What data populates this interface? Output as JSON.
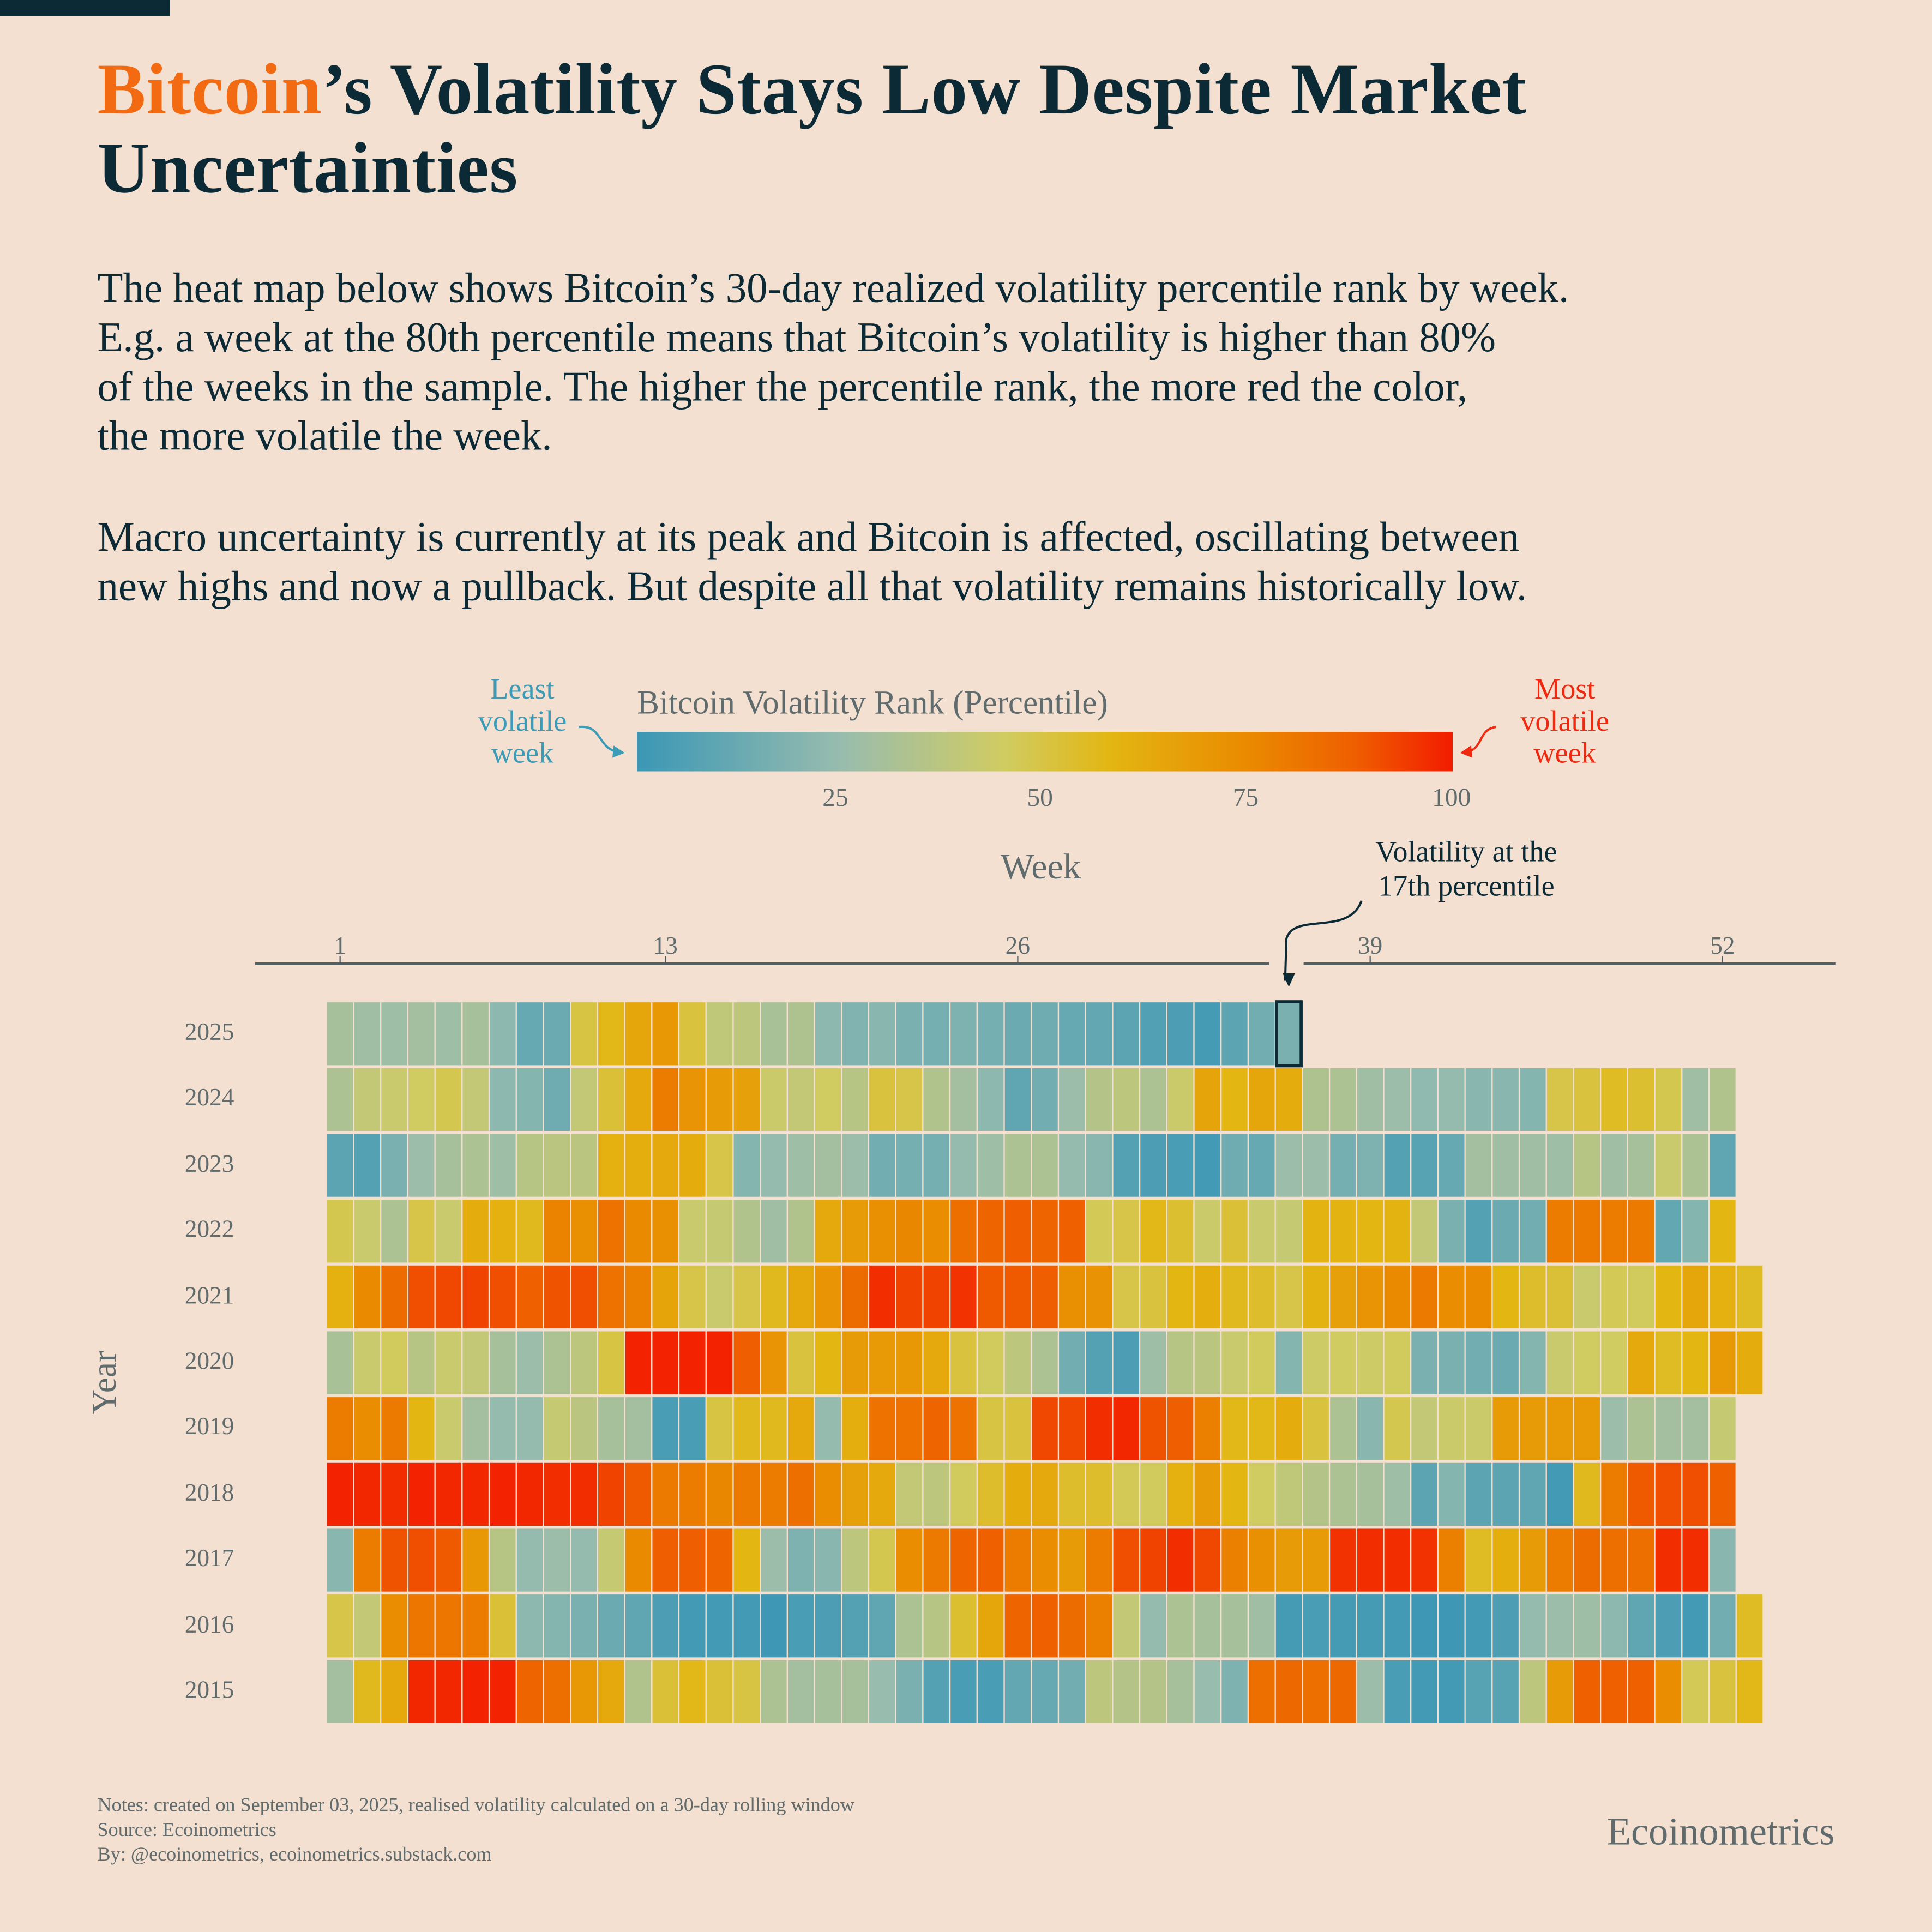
{
  "title": {
    "accent": "Bitcoin",
    "rest_line1": "’s Volatility Stays Low Despite Market",
    "line2": "Uncertainties"
  },
  "description": {
    "paragraph1": [
      "The heat map below shows Bitcoin’s 30-day realized volatility percentile rank by week.",
      "E.g. a week at the 80th percentile means that Bitcoin’s volatility is higher than 80%",
      "of the weeks in the sample. The higher the percentile rank, the more red the color,",
      "the more volatile the week."
    ],
    "paragraph2": [
      "Macro uncertainty is currently at its peak and Bitcoin is affected, oscillating between",
      "new highs and now a pullback. But despite all that volatility remains historically low."
    ]
  },
  "legend": {
    "title": "Bitcoin Volatility Rank (Percentile)",
    "left_note": [
      "Least",
      "volatile",
      "week"
    ],
    "right_note": [
      "Most",
      "volatile",
      "week"
    ],
    "ticks": [
      "25",
      "50",
      "75",
      "100"
    ],
    "colors": {
      "low": "#3c9cb8",
      "high": "#f02a10"
    }
  },
  "annotation": [
    "Volatility at the",
    "17th percentile"
  ],
  "notes": [
    "Notes: created on September 03, 2025, realised volatility calculated on a 30-day rolling window",
    "Source: Ecoinometrics",
    "By: @ecoinometrics, ecoinometrics.substack.com"
  ],
  "brand": "Ecoinometrics",
  "chart_data": {
    "type": "heatmap",
    "title": "",
    "xlabel": "Week",
    "ylabel": "Year",
    "x_ticks": [
      1,
      13,
      26,
      39,
      52
    ],
    "color_range": [
      0,
      100
    ],
    "colorscale": [
      [
        0,
        "#3a97b5"
      ],
      [
        25,
        "#98bcae"
      ],
      [
        45,
        "#d0cc62"
      ],
      [
        58,
        "#e3b612"
      ],
      [
        75,
        "#ea8a00"
      ],
      [
        88,
        "#ef5e00"
      ],
      [
        100,
        "#f31c00"
      ]
    ],
    "highlight": {
      "year": 2025,
      "week": 36,
      "value": 17
    },
    "rows": [
      {
        "year": 2025,
        "values": [
          30,
          28,
          27,
          29,
          27,
          30,
          22,
          12,
          13,
          50,
          57,
          64,
          70,
          51,
          39,
          38,
          31,
          33,
          22,
          19,
          21,
          17,
          16,
          18,
          16,
          13,
          14,
          12,
          11,
          9,
          6,
          5,
          3,
          9,
          15,
          17
        ]
      },
      {
        "year": 2024,
        "values": [
          32,
          40,
          42,
          45,
          48,
          40,
          22,
          20,
          14,
          40,
          52,
          63,
          79,
          71,
          68,
          66,
          43,
          40,
          45,
          36,
          51,
          49,
          34,
          29,
          22,
          10,
          15,
          26,
          35,
          38,
          32,
          43,
          65,
          58,
          64,
          62,
          33,
          32,
          28,
          26,
          23,
          24,
          21,
          21,
          20,
          49,
          51,
          55,
          53,
          48,
          28,
          34
        ]
      },
      {
        "year": 2023,
        "values": [
          9,
          7,
          17,
          26,
          30,
          32,
          27,
          36,
          37,
          37,
          60,
          61,
          63,
          62,
          49,
          20,
          24,
          27,
          29,
          26,
          15,
          16,
          16,
          24,
          27,
          32,
          32,
          24,
          21,
          7,
          5,
          4,
          2,
          14,
          12,
          26,
          26,
          16,
          18,
          7,
          8,
          12,
          29,
          28,
          28,
          27,
          36,
          28,
          30,
          42,
          32,
          10
        ]
      },
      {
        "year": 2022,
        "values": [
          48,
          42,
          32,
          49,
          42,
          62,
          60,
          56,
          77,
          73,
          82,
          75,
          73,
          42,
          41,
          34,
          28,
          34,
          63,
          68,
          73,
          76,
          74,
          83,
          86,
          88,
          86,
          87,
          47,
          49,
          57,
          53,
          43,
          52,
          42,
          41,
          59,
          59,
          58,
          59,
          40,
          17,
          7,
          13,
          15,
          79,
          80,
          79,
          80,
          11,
          20,
          58
        ]
      },
      {
        "year": 2021,
        "values": [
          60,
          75,
          84,
          91,
          92,
          93,
          91,
          87,
          90,
          91,
          82,
          78,
          65,
          49,
          42,
          49,
          56,
          63,
          71,
          84,
          97,
          93,
          93,
          96,
          89,
          89,
          88,
          73,
          72,
          49,
          51,
          58,
          61,
          56,
          54,
          49,
          59,
          66,
          71,
          75,
          80,
          74,
          75,
          58,
          54,
          52,
          42,
          47,
          46,
          58,
          64,
          60,
          55
        ]
      },
      {
        "year": 2020,
        "values": [
          31,
          42,
          46,
          36,
          42,
          40,
          30,
          26,
          32,
          38,
          50,
          99,
          99,
          99,
          99,
          88,
          71,
          51,
          58,
          68,
          69,
          70,
          63,
          51,
          46,
          38,
          32,
          15,
          7,
          5,
          27,
          36,
          37,
          42,
          46,
          20,
          44,
          45,
          44,
          46,
          17,
          17,
          15,
          13,
          20,
          42,
          45,
          45,
          63,
          55,
          58,
          69,
          62
        ]
      },
      {
        "year": 2019,
        "values": [
          79,
          74,
          80,
          58,
          42,
          29,
          24,
          24,
          41,
          37,
          30,
          29,
          4,
          4,
          50,
          56,
          56,
          63,
          24,
          61,
          82,
          82,
          86,
          82,
          50,
          51,
          92,
          92,
          97,
          98,
          90,
          88,
          78,
          57,
          57,
          62,
          51,
          32,
          21,
          48,
          40,
          43,
          43,
          68,
          68,
          69,
          69,
          26,
          32,
          29,
          29,
          41
        ]
      },
      {
        "year": 2018,
        "values": [
          99,
          98,
          97,
          99,
          98,
          98,
          99,
          98,
          97,
          97,
          93,
          89,
          80,
          79,
          76,
          80,
          79,
          83,
          74,
          66,
          63,
          40,
          38,
          46,
          54,
          62,
          63,
          54,
          54,
          47,
          46,
          60,
          68,
          58,
          45,
          39,
          35,
          32,
          30,
          27,
          9,
          20,
          9,
          9,
          10,
          2,
          56,
          79,
          89,
          91,
          91,
          87
        ]
      },
      {
        "year": 2017,
        "values": [
          21,
          79,
          90,
          91,
          89,
          70,
          36,
          24,
          26,
          24,
          41,
          75,
          88,
          88,
          86,
          58,
          26,
          18,
          21,
          38,
          48,
          74,
          80,
          86,
          87,
          79,
          74,
          68,
          79,
          91,
          93,
          97,
          92,
          78,
          73,
          68,
          68,
          96,
          97,
          97,
          96,
          78,
          55,
          61,
          68,
          79,
          84,
          83,
          83,
          97,
          97,
          21
        ]
      },
      {
        "year": 2016,
        "values": [
          49,
          40,
          74,
          81,
          81,
          79,
          52,
          22,
          20,
          17,
          13,
          10,
          5,
          2,
          2,
          2,
          1,
          4,
          5,
          7,
          10,
          32,
          36,
          53,
          64,
          86,
          87,
          84,
          78,
          40,
          24,
          32,
          30,
          30,
          28,
          3,
          4,
          3,
          3,
          2,
          1,
          1,
          2,
          5,
          24,
          26,
          27,
          22,
          10,
          5,
          2,
          15,
          55
        ]
      },
      {
        "year": 2015,
        "values": [
          29,
          56,
          63,
          98,
          98,
          99,
          99,
          86,
          83,
          70,
          63,
          34,
          52,
          57,
          52,
          50,
          32,
          29,
          30,
          30,
          25,
          17,
          7,
          4,
          4,
          11,
          12,
          15,
          38,
          35,
          35,
          30,
          25,
          18,
          83,
          85,
          83,
          85,
          26,
          4,
          2,
          2,
          8,
          8,
          38,
          68,
          87,
          87,
          87,
          74,
          47,
          51,
          57
        ]
      }
    ]
  }
}
